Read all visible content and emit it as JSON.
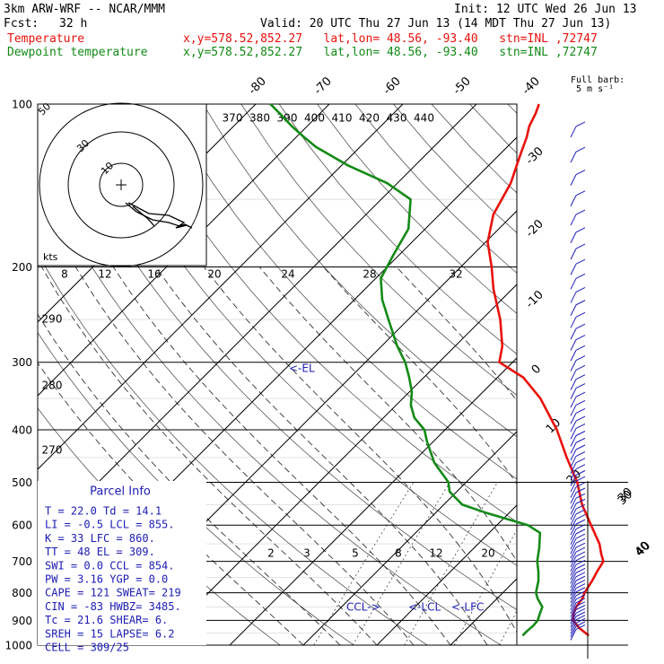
{
  "header": {
    "model": "3km ARW-WRF -- NCAR/MMM",
    "init": "Init: 12 UTC Wed 26 Jun 13",
    "fcst_label": "Fcst:",
    "fcst_value": "32 h",
    "valid": "Valid: 20 UTC Thu 27 Jun 13 (14 MDT Thu 27 Jun 13)",
    "temp_name": "Temperature",
    "dew_name": "Dewpoint temperature",
    "location": "x,y=578.52,852.27   lat,lon= 48.56, -93.40   stn=INL ,72747",
    "fullbarb": "Full barb:",
    "fullbarb_unit": "5 m s⁻¹"
  },
  "colors": {
    "temperature": "#e8120c",
    "dewpoint": "#138a16",
    "wind": "#1c1cb4",
    "parcel_text": "#1c1cb4",
    "grid": "#000000"
  },
  "chart_data": {
    "type": "line",
    "title": "",
    "ylabel": "",
    "y_scale": "log-pressure",
    "pressure_levels": [
      "100",
      "200",
      "300",
      "400",
      "500",
      "600",
      "700",
      "800",
      "900",
      "1000"
    ],
    "isotherm_labels": [
      "-80",
      "-70",
      "-60",
      "-50",
      "-40",
      "-30",
      "-20",
      "-10",
      "0",
      "10",
      "20",
      "30",
      "40"
    ],
    "theta_e_labels": [
      "370",
      "380",
      "390",
      "400",
      "410",
      "420",
      "430",
      "440"
    ],
    "mixing_ratio_upper": [
      "8",
      "12",
      "16",
      "20",
      "24",
      "28",
      "32"
    ],
    "mixing_ratio_lower": [
      "2",
      "3",
      "5",
      "8",
      "12",
      "20"
    ],
    "theta_labels": [
      "290",
      "280",
      "270"
    ],
    "el_label": "<-EL",
    "lower_labels": [
      "CCL->",
      "<-LCL",
      "<-LFC"
    ],
    "series": [
      {
        "name": "Temperature",
        "points": [
          [
            960,
            27.5
          ],
          [
            930,
            25.2
          ],
          [
            900,
            23.3
          ],
          [
            870,
            22.3
          ],
          [
            850,
            21.9
          ],
          [
            820,
            21.6
          ],
          [
            800,
            21.1
          ],
          [
            760,
            20.5
          ],
          [
            730,
            19.9
          ],
          [
            700,
            19.4
          ],
          [
            680,
            18.2
          ],
          [
            650,
            16.5
          ],
          [
            600,
            12.8
          ],
          [
            550,
            8.8
          ],
          [
            500,
            5.1
          ],
          [
            450,
            0.3
          ],
          [
            400,
            -4.8
          ],
          [
            350,
            -11.3
          ],
          [
            320,
            -16.5
          ],
          [
            300,
            -21.8
          ],
          [
            280,
            -23.6
          ],
          [
            250,
            -27.5
          ],
          [
            220,
            -32.5
          ],
          [
            200,
            -35.8
          ],
          [
            180,
            -39.7
          ],
          [
            160,
            -42.7
          ],
          [
            140,
            -44.6
          ],
          [
            125,
            -47.0
          ],
          [
            115,
            -48.7
          ],
          [
            110,
            -49.8
          ],
          [
            104,
            -50.7
          ],
          [
            100,
            -51.5
          ]
        ]
      },
      {
        "name": "Dewpoint temperature",
        "points": [
          [
            960,
            18.5
          ],
          [
            940,
            18.5
          ],
          [
            920,
            18.6
          ],
          [
            900,
            18.5
          ],
          [
            880,
            18.0
          ],
          [
            850,
            17.3
          ],
          [
            820,
            15.5
          ],
          [
            800,
            14.5
          ],
          [
            760,
            13.2
          ],
          [
            730,
            11.9
          ],
          [
            700,
            10.4
          ],
          [
            660,
            8.8
          ],
          [
            620,
            6.9
          ],
          [
            600,
            4.2
          ],
          [
            570,
            -3.0
          ],
          [
            550,
            -7.5
          ],
          [
            520,
            -11.0
          ],
          [
            500,
            -12.4
          ],
          [
            460,
            -17.0
          ],
          [
            420,
            -20.9
          ],
          [
            400,
            -22.8
          ],
          [
            380,
            -25.8
          ],
          [
            360,
            -28.0
          ],
          [
            340,
            -29.7
          ],
          [
            320,
            -32.0
          ],
          [
            300,
            -34.6
          ],
          [
            280,
            -37.9
          ],
          [
            250,
            -42.7
          ],
          [
            230,
            -46.2
          ],
          [
            210,
            -49.3
          ],
          [
            190,
            -50.8
          ],
          [
            170,
            -52.3
          ],
          [
            150,
            -56.0
          ],
          [
            140,
            -61.4
          ],
          [
            130,
            -69.0
          ],
          [
            120,
            -76.0
          ],
          [
            115,
            -79.0
          ],
          [
            110,
            -82.0
          ],
          [
            104,
            -85.5
          ],
          [
            100,
            -88.0
          ]
        ]
      }
    ]
  },
  "hodograph": {
    "units": "kts",
    "ring_labels": [
      "50",
      "30",
      "10"
    ]
  },
  "parcel_info": {
    "title": "Parcel Info",
    "lines": [
      "T  =   22.0  Td =  14.1",
      "LI =   -0.5  LCL =  855.",
      "K  =     33  LFC =  860.",
      "TT =     48  EL  =  309.",
      "SWI =   0.0  CCL =  854.",
      "PW =   3.16  YGP =   0.0",
      "CAPE =  121  SWEAT=  219",
      "CIN =   -83  HWBZ= 3485.",
      "Tc =   21.6  SHEAR=   6.",
      "SREH =   15  LAPSE=  6.2",
      "CELL = 309/25"
    ]
  },
  "wind": {
    "axis_labels": [
      "30",
      "40"
    ]
  }
}
